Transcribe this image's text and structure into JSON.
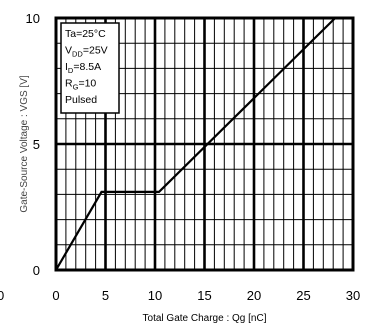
{
  "chart_data": {
    "type": "line",
    "xlabel": "Total Gate Charge : Qg  [nC]",
    "ylabel": "Gate-Source Voltage : VGS  [V]",
    "xlim": [
      0,
      30
    ],
    "ylim": [
      0,
      10
    ],
    "x_ticks": [
      "0",
      "5",
      "10",
      "15",
      "20",
      "25",
      "30"
    ],
    "y_ticks": [
      "0",
      "5",
      "10"
    ],
    "left_edge_label": "0",
    "grid": true,
    "series": [
      {
        "x": [
          0,
          4.6,
          10.4,
          28.2
        ],
        "y": [
          0,
          3.1,
          3.1,
          10
        ]
      }
    ],
    "legend": {
      "position": "top-left",
      "lines": [
        {
          "base": "Ta=25°C",
          "sub": "",
          "tail": ""
        },
        {
          "base": "V",
          "sub": "DD",
          "tail": "=25V"
        },
        {
          "base": "I",
          "sub": "D",
          "tail": "=8.5A"
        },
        {
          "base": "R",
          "sub": "G",
          "tail": "=10"
        },
        {
          "base": "Pulsed",
          "sub": "",
          "tail": ""
        }
      ]
    }
  }
}
